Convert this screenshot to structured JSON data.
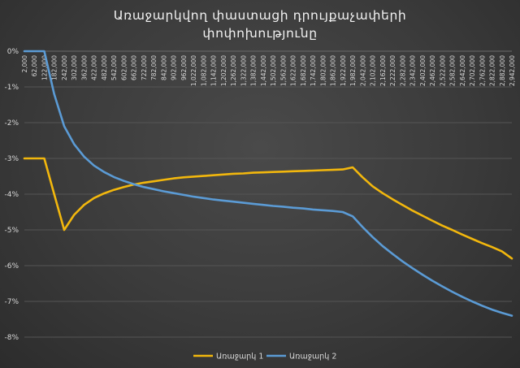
{
  "title_line1": "Առաջարկվող  փաստացի  դրույքաչափերի",
  "title_line2": "փոփոխությունը",
  "colors": {
    "series1": "#F2B70D",
    "series2": "#5B9BD5",
    "grid": "#555555",
    "text": "#d9d9d9"
  },
  "chart_data": {
    "type": "line",
    "title": "Առաջարկվող  փաստացի  դրույքաչափերի փոփոխությունը",
    "xlabel": "",
    "ylabel": "",
    "x_categories": [
      "2,000",
      "62,000",
      "122,000",
      "182,000",
      "242,000",
      "302,000",
      "362,000",
      "422,000",
      "482,000",
      "542,000",
      "602,000",
      "662,000",
      "722,000",
      "782,000",
      "842,000",
      "902,000",
      "962,000",
      "1,022,000",
      "1,082,000",
      "1,142,000",
      "1,202,000",
      "1,262,000",
      "1,322,000",
      "1,382,000",
      "1,442,000",
      "1,502,000",
      "1,562,000",
      "1,622,000",
      "1,682,000",
      "1,742,000",
      "1,802,000",
      "1,862,000",
      "1,922,000",
      "1,982,000",
      "2,042,000",
      "2,102,000",
      "2,162,000",
      "2,222,000",
      "2,282,000",
      "2,342,000",
      "2,402,000",
      "2,462,000",
      "2,522,000",
      "2,582,000",
      "2,642,000",
      "2,702,000",
      "2,762,000",
      "2,822,000",
      "2,882,000",
      "2,942,000"
    ],
    "yticks": [
      "0%",
      "-1%",
      "-2%",
      "-3%",
      "-4%",
      "-5%",
      "-6%",
      "-7%",
      "-8%"
    ],
    "ylim": [
      -8,
      0
    ],
    "legend_position": "bottom",
    "series": [
      {
        "name": "Առաջարկ 1",
        "values": [
          -3.0,
          -3.0,
          -3.0,
          -4.0,
          -5.0,
          -4.58,
          -4.3,
          -4.11,
          -3.98,
          -3.88,
          -3.8,
          -3.73,
          -3.68,
          -3.64,
          -3.6,
          -3.56,
          -3.53,
          -3.51,
          -3.49,
          -3.47,
          -3.45,
          -3.43,
          -3.42,
          -3.4,
          -3.39,
          -3.38,
          -3.37,
          -3.36,
          -3.35,
          -3.34,
          -3.33,
          -3.32,
          -3.31,
          -3.25,
          -3.53,
          -3.78,
          -3.97,
          -4.14,
          -4.3,
          -4.46,
          -4.6,
          -4.74,
          -4.88,
          -5.0,
          -5.13,
          -5.25,
          -5.37,
          -5.48,
          -5.6,
          -5.8
        ]
      },
      {
        "name": "Առաջարկ 2",
        "values": [
          0.0,
          0.0,
          0.0,
          -1.2,
          -2.1,
          -2.6,
          -2.95,
          -3.2,
          -3.38,
          -3.52,
          -3.63,
          -3.72,
          -3.8,
          -3.86,
          -3.92,
          -3.97,
          -4.02,
          -4.07,
          -4.11,
          -4.15,
          -4.18,
          -4.21,
          -4.24,
          -4.27,
          -4.3,
          -4.33,
          -4.35,
          -4.38,
          -4.4,
          -4.43,
          -4.45,
          -4.47,
          -4.5,
          -4.62,
          -4.92,
          -5.2,
          -5.45,
          -5.67,
          -5.88,
          -6.07,
          -6.25,
          -6.42,
          -6.58,
          -6.73,
          -6.87,
          -7.0,
          -7.12,
          -7.23,
          -7.32,
          -7.4
        ]
      }
    ]
  }
}
